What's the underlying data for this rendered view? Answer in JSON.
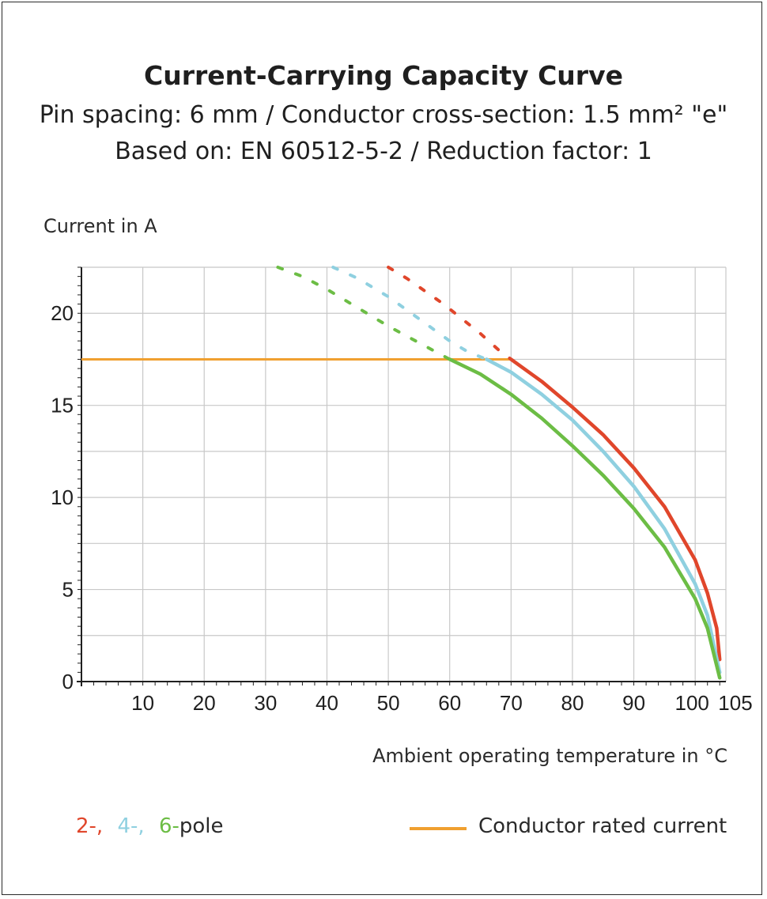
{
  "title": "Current-Carrying Capacity Curve",
  "subtitle_1": "Pin spacing: 6 mm / Conductor cross-section: 1.5 mm² \"e\"",
  "subtitle_2": "Based on: EN 60512-5-2 / Reduction factor: 1",
  "legend": {
    "poles": [
      {
        "text": "2-,",
        "color": "#e0462b"
      },
      {
        "text": "4-,",
        "color": "#8fd0e0"
      },
      {
        "text": "6-",
        "color": "#6cbd45"
      },
      {
        "text": "pole",
        "color": "#2a2a2a"
      }
    ],
    "rated_current": {
      "text": "Conductor rated current",
      "color": "#f0a030"
    }
  },
  "chart_data": {
    "type": "line",
    "title": "Current-Carrying Capacity Curve",
    "xlabel": "Ambient operating temperature in °C",
    "ylabel": "Current in A",
    "xlim": [
      0,
      105
    ],
    "ylim": [
      0,
      22.5
    ],
    "x_ticks": [
      10,
      20,
      30,
      40,
      50,
      60,
      70,
      80,
      90,
      100,
      105
    ],
    "y_ticks": [
      0,
      5,
      10,
      15,
      20
    ],
    "x_tick_labels": [
      "10",
      "20",
      "30",
      "40",
      "50",
      "60",
      "70",
      "80",
      "90",
      "100",
      "105"
    ],
    "y_tick_labels": [
      "0",
      "5",
      "10",
      "15",
      "20"
    ],
    "grid": true,
    "series": [
      {
        "name": "2-pole",
        "color": "#e0462b",
        "dashed": {
          "x": [
            50,
            53,
            56,
            59,
            62,
            65,
            68,
            70
          ],
          "y": [
            22.5,
            21.9,
            21.2,
            20.5,
            19.7,
            18.9,
            18.0,
            17.5
          ]
        },
        "solid": {
          "x": [
            70,
            75,
            80,
            85,
            90,
            95,
            100,
            102,
            103.5,
            104
          ],
          "y": [
            17.5,
            16.3,
            14.9,
            13.4,
            11.6,
            9.5,
            6.6,
            4.8,
            2.9,
            1.2
          ]
        }
      },
      {
        "name": "4-pole",
        "color": "#8fd0e0",
        "dashed": {
          "x": [
            41,
            45,
            50,
            55,
            60,
            63,
            66
          ],
          "y": [
            22.5,
            21.9,
            20.9,
            19.7,
            18.5,
            17.9,
            17.5
          ]
        },
        "solid": {
          "x": [
            66,
            70,
            75,
            80,
            85,
            90,
            95,
            100,
            102,
            104
          ],
          "y": [
            17.5,
            16.8,
            15.6,
            14.2,
            12.5,
            10.6,
            8.3,
            5.3,
            3.6,
            0.5
          ]
        }
      },
      {
        "name": "6-pole",
        "color": "#6cbd45",
        "dashed": {
          "x": [
            32,
            36,
            40,
            45,
            50,
            55,
            60
          ],
          "y": [
            22.5,
            22.0,
            21.3,
            20.3,
            19.3,
            18.4,
            17.5
          ]
        },
        "solid": {
          "x": [
            60,
            65,
            70,
            75,
            80,
            85,
            90,
            95,
            100,
            102,
            104
          ],
          "y": [
            17.5,
            16.7,
            15.6,
            14.3,
            12.8,
            11.2,
            9.4,
            7.3,
            4.5,
            2.9,
            0.2
          ]
        }
      }
    ],
    "reference_line": {
      "name": "Conductor rated current",
      "color": "#f0a030",
      "x": [
        0,
        70
      ],
      "y": [
        17.5,
        17.5
      ]
    }
  }
}
